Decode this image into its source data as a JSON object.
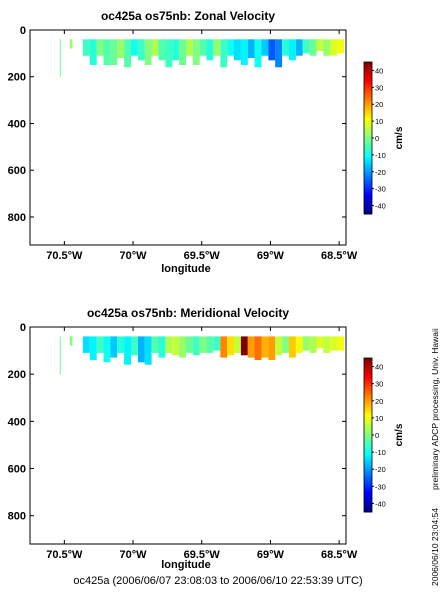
{
  "footer": {
    "time_range": "oc425a (2006/06/07 23:08:03 to 2006/06/10 22:53:39 UTC)"
  },
  "side_notes": {
    "processing": "preliminary ADCP processing,   Univ. Hawaii",
    "timestamp": "2006/06/10 23:04:54"
  },
  "chart_data": [
    {
      "type": "heatmap",
      "title": "oc425a os75nb: Zonal Velocity",
      "xlabel": "longitude",
      "ylabel": "",
      "x_axis": {
        "range": [
          -70.75,
          -68.45
        ],
        "ticks": [
          -70.5,
          -70.0,
          -69.5,
          -69.0,
          -68.5
        ],
        "tick_labels": [
          "70.5°W",
          "70°W",
          "69.5°W",
          "69°W",
          "68.5°W"
        ]
      },
      "y_axis": {
        "range": [
          0,
          920
        ],
        "reversed": true,
        "ticks": [
          0,
          200,
          400,
          600,
          800
        ],
        "tick_labels": [
          "0",
          "200",
          "400",
          "600",
          "800"
        ]
      },
      "colorbar": {
        "label": "cm/s",
        "range": [
          -45,
          45
        ],
        "ticks": [
          40,
          30,
          20,
          10,
          0,
          -10,
          -20,
          -30,
          -40
        ],
        "colormap": "jet"
      },
      "series": [
        {
          "lon": -70.53,
          "depth": [
            40,
            200
          ],
          "value": -2,
          "width": 0.006
        },
        {
          "lon": -70.45,
          "depth": [
            40,
            80
          ],
          "value": 2,
          "width": 0.02
        },
        {
          "lon": -70.34,
          "depth": [
            40,
            110
          ],
          "value": -6,
          "width": 0.05
        },
        {
          "lon": -70.29,
          "depth": [
            40,
            150
          ],
          "value": -8,
          "width": 0.05
        },
        {
          "lon": -70.24,
          "depth": [
            40,
            110
          ],
          "value": 0,
          "width": 0.05
        },
        {
          "lon": -70.19,
          "depth": [
            40,
            150
          ],
          "value": -4,
          "width": 0.05
        },
        {
          "lon": -70.14,
          "depth": [
            40,
            150
          ],
          "value": -2,
          "width": 0.05
        },
        {
          "lon": -70.09,
          "depth": [
            40,
            120
          ],
          "value": 2,
          "width": 0.05
        },
        {
          "lon": -70.04,
          "depth": [
            40,
            160
          ],
          "value": -4,
          "width": 0.05
        },
        {
          "lon": -69.99,
          "depth": [
            40,
            110
          ],
          "value": -10,
          "width": 0.05
        },
        {
          "lon": -69.94,
          "depth": [
            40,
            130
          ],
          "value": -6,
          "width": 0.05
        },
        {
          "lon": -69.89,
          "depth": [
            40,
            150
          ],
          "value": 0,
          "width": 0.05
        },
        {
          "lon": -69.84,
          "depth": [
            40,
            110
          ],
          "value": 4,
          "width": 0.05
        },
        {
          "lon": -69.79,
          "depth": [
            40,
            130
          ],
          "value": -4,
          "width": 0.05
        },
        {
          "lon": -69.74,
          "depth": [
            40,
            160
          ],
          "value": -6,
          "width": 0.05
        },
        {
          "lon": -69.69,
          "depth": [
            40,
            130
          ],
          "value": -8,
          "width": 0.05
        },
        {
          "lon": -69.64,
          "depth": [
            40,
            150
          ],
          "value": -2,
          "width": 0.05
        },
        {
          "lon": -69.59,
          "depth": [
            40,
            110
          ],
          "value": 4,
          "width": 0.05
        },
        {
          "lon": -69.54,
          "depth": [
            40,
            150
          ],
          "value": 0,
          "width": 0.05
        },
        {
          "lon": -69.49,
          "depth": [
            40,
            110
          ],
          "value": -4,
          "width": 0.05
        },
        {
          "lon": -69.44,
          "depth": [
            40,
            130
          ],
          "value": -8,
          "width": 0.05
        },
        {
          "lon": -69.39,
          "depth": [
            40,
            110
          ],
          "value": 2,
          "width": 0.05
        },
        {
          "lon": -69.34,
          "depth": [
            40,
            160
          ],
          "value": -6,
          "width": 0.05
        },
        {
          "lon": -69.29,
          "depth": [
            40,
            110
          ],
          "value": -10,
          "width": 0.05
        },
        {
          "lon": -69.24,
          "depth": [
            40,
            130
          ],
          "value": -14,
          "width": 0.05
        },
        {
          "lon": -69.19,
          "depth": [
            40,
            150
          ],
          "value": -12,
          "width": 0.05
        },
        {
          "lon": -69.14,
          "depth": [
            40,
            120
          ],
          "value": -18,
          "width": 0.05
        },
        {
          "lon": -69.09,
          "depth": [
            40,
            160
          ],
          "value": -10,
          "width": 0.05
        },
        {
          "lon": -69.04,
          "depth": [
            40,
            110
          ],
          "value": -16,
          "width": 0.05
        },
        {
          "lon": -68.99,
          "depth": [
            40,
            130
          ],
          "value": -26,
          "width": 0.05
        },
        {
          "lon": -68.94,
          "depth": [
            40,
            160
          ],
          "value": -22,
          "width": 0.05
        },
        {
          "lon": -68.89,
          "depth": [
            40,
            110
          ],
          "value": -8,
          "width": 0.05
        },
        {
          "lon": -68.84,
          "depth": [
            40,
            130
          ],
          "value": -12,
          "width": 0.05
        },
        {
          "lon": -68.79,
          "depth": [
            40,
            110
          ],
          "value": -18,
          "width": 0.05
        },
        {
          "lon": -68.74,
          "depth": [
            40,
            100
          ],
          "value": -6,
          "width": 0.05
        },
        {
          "lon": -68.69,
          "depth": [
            40,
            110
          ],
          "value": -2,
          "width": 0.05
        },
        {
          "lon": -68.64,
          "depth": [
            40,
            90
          ],
          "value": 6,
          "width": 0.05
        },
        {
          "lon": -68.59,
          "depth": [
            40,
            110
          ],
          "value": 2,
          "width": 0.05
        },
        {
          "lon": -68.54,
          "depth": [
            40,
            110
          ],
          "value": 8,
          "width": 0.05
        },
        {
          "lon": -68.49,
          "depth": [
            40,
            100
          ],
          "value": 10,
          "width": 0.05
        }
      ]
    },
    {
      "type": "heatmap",
      "title": "oc425a os75nb: Meridional Velocity",
      "xlabel": "longitude",
      "ylabel": "",
      "x_axis": {
        "range": [
          -70.75,
          -68.45
        ],
        "ticks": [
          -70.5,
          -70.0,
          -69.5,
          -69.0,
          -68.5
        ],
        "tick_labels": [
          "70.5°W",
          "70°W",
          "69.5°W",
          "69°W",
          "68.5°W"
        ]
      },
      "y_axis": {
        "range": [
          0,
          920
        ],
        "reversed": true,
        "ticks": [
          0,
          200,
          400,
          600,
          800
        ],
        "tick_labels": [
          "0",
          "200",
          "400",
          "600",
          "800"
        ]
      },
      "colorbar": {
        "label": "cm/s",
        "range": [
          -45,
          45
        ],
        "ticks": [
          40,
          30,
          20,
          10,
          0,
          -10,
          -20,
          -30,
          -40
        ],
        "colormap": "jet"
      },
      "series": [
        {
          "lon": -70.53,
          "depth": [
            40,
            200
          ],
          "value": -2,
          "width": 0.006
        },
        {
          "lon": -70.45,
          "depth": [
            40,
            80
          ],
          "value": 0,
          "width": 0.02
        },
        {
          "lon": -70.34,
          "depth": [
            40,
            110
          ],
          "value": -14,
          "width": 0.05
        },
        {
          "lon": -70.29,
          "depth": [
            40,
            140
          ],
          "value": -12,
          "width": 0.05
        },
        {
          "lon": -70.24,
          "depth": [
            40,
            110
          ],
          "value": -6,
          "width": 0.05
        },
        {
          "lon": -70.19,
          "depth": [
            40,
            150
          ],
          "value": -10,
          "width": 0.05
        },
        {
          "lon": -70.14,
          "depth": [
            40,
            130
          ],
          "value": -16,
          "width": 0.05
        },
        {
          "lon": -70.09,
          "depth": [
            40,
            110
          ],
          "value": -8,
          "width": 0.05
        },
        {
          "lon": -70.04,
          "depth": [
            40,
            160
          ],
          "value": -12,
          "width": 0.05
        },
        {
          "lon": -69.99,
          "depth": [
            40,
            120
          ],
          "value": -6,
          "width": 0.05
        },
        {
          "lon": -69.94,
          "depth": [
            40,
            150
          ],
          "value": -18,
          "width": 0.05
        },
        {
          "lon": -69.89,
          "depth": [
            40,
            160
          ],
          "value": -14,
          "width": 0.05
        },
        {
          "lon": -69.84,
          "depth": [
            40,
            110
          ],
          "value": -4,
          "width": 0.05
        },
        {
          "lon": -69.79,
          "depth": [
            40,
            130
          ],
          "value": -8,
          "width": 0.05
        },
        {
          "lon": -69.74,
          "depth": [
            40,
            110
          ],
          "value": 4,
          "width": 0.05
        },
        {
          "lon": -69.69,
          "depth": [
            40,
            120
          ],
          "value": 6,
          "width": 0.05
        },
        {
          "lon": -69.64,
          "depth": [
            40,
            130
          ],
          "value": 2,
          "width": 0.05
        },
        {
          "lon": -69.59,
          "depth": [
            40,
            110
          ],
          "value": -2,
          "width": 0.05
        },
        {
          "lon": -69.54,
          "depth": [
            40,
            120
          ],
          "value": -6,
          "width": 0.05
        },
        {
          "lon": -69.49,
          "depth": [
            40,
            110
          ],
          "value": 0,
          "width": 0.05
        },
        {
          "lon": -69.44,
          "depth": [
            40,
            110
          ],
          "value": -4,
          "width": 0.05
        },
        {
          "lon": -69.39,
          "depth": [
            40,
            100
          ],
          "value": -6,
          "width": 0.05
        },
        {
          "lon": -69.34,
          "depth": [
            40,
            130
          ],
          "value": 22,
          "width": 0.05
        },
        {
          "lon": -69.29,
          "depth": [
            40,
            120
          ],
          "value": 14,
          "width": 0.05
        },
        {
          "lon": -69.24,
          "depth": [
            40,
            110
          ],
          "value": 6,
          "width": 0.05
        },
        {
          "lon": -69.19,
          "depth": [
            40,
            120
          ],
          "value": 45,
          "width": 0.05
        },
        {
          "lon": -69.14,
          "depth": [
            40,
            130
          ],
          "value": 20,
          "width": 0.05
        },
        {
          "lon": -69.09,
          "depth": [
            40,
            140
          ],
          "value": 24,
          "width": 0.05
        },
        {
          "lon": -69.04,
          "depth": [
            40,
            130
          ],
          "value": 18,
          "width": 0.05
        },
        {
          "lon": -68.99,
          "depth": [
            40,
            140
          ],
          "value": 20,
          "width": 0.05
        },
        {
          "lon": -68.94,
          "depth": [
            40,
            120
          ],
          "value": 6,
          "width": 0.05
        },
        {
          "lon": -68.89,
          "depth": [
            40,
            110
          ],
          "value": 0,
          "width": 0.05
        },
        {
          "lon": -68.84,
          "depth": [
            40,
            130
          ],
          "value": 16,
          "width": 0.05
        },
        {
          "lon": -68.79,
          "depth": [
            40,
            110
          ],
          "value": 10,
          "width": 0.05
        },
        {
          "lon": -68.74,
          "depth": [
            40,
            100
          ],
          "value": 2,
          "width": 0.05
        },
        {
          "lon": -68.69,
          "depth": [
            40,
            110
          ],
          "value": 4,
          "width": 0.05
        },
        {
          "lon": -68.64,
          "depth": [
            40,
            90
          ],
          "value": 8,
          "width": 0.05
        },
        {
          "lon": -68.59,
          "depth": [
            40,
            110
          ],
          "value": 6,
          "width": 0.05
        },
        {
          "lon": -68.54,
          "depth": [
            40,
            100
          ],
          "value": 8,
          "width": 0.05
        },
        {
          "lon": -68.49,
          "depth": [
            40,
            100
          ],
          "value": 10,
          "width": 0.05
        }
      ]
    }
  ]
}
